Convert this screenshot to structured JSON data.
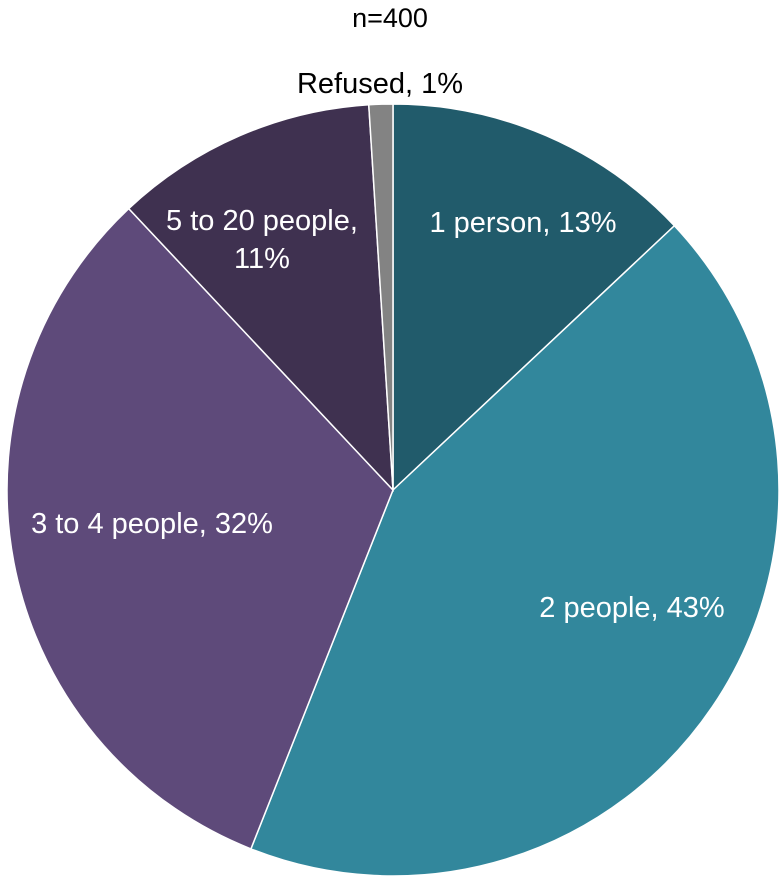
{
  "chart_data": {
    "type": "pie",
    "subtitle": "n=400",
    "slices": [
      {
        "label": "1 person",
        "value": 13,
        "value_label": "13%",
        "color": "#215b6b",
        "text_color": "#ffffff"
      },
      {
        "label": "2 people",
        "value": 43,
        "value_label": "43%",
        "color": "#32879c",
        "text_color": "#ffffff"
      },
      {
        "label": "3 to 4 people",
        "value": 32,
        "value_label": "32%",
        "color": "#5e4a7a",
        "text_color": "#ffffff"
      },
      {
        "label": "5 to 20 people",
        "value": 11,
        "value_label": "11%",
        "color": "#3f3150",
        "text_color": "#ffffff"
      },
      {
        "label": "Refused",
        "value": 1,
        "value_label": "1%",
        "color": "#838383",
        "text_color": "#000000"
      }
    ],
    "start_angle_deg": 0,
    "direction": "clockwise",
    "data_labels": "category, percentage"
  }
}
